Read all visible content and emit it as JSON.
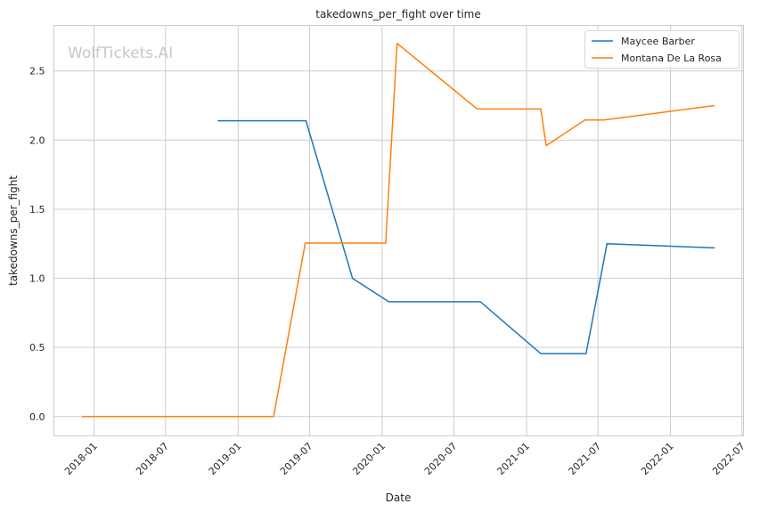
{
  "chart_data": {
    "type": "line",
    "title": "takedowns_per_fight over time",
    "xlabel": "Date",
    "ylabel": "takedowns_per_fight",
    "watermark": "WolfTickets.AI",
    "xlim": [
      "2017-09-21",
      "2022-07-05"
    ],
    "ylim": [
      -0.14,
      2.83
    ],
    "x_ticks": [
      "2018-01",
      "2018-07",
      "2019-01",
      "2019-07",
      "2020-01",
      "2020-07",
      "2021-01",
      "2021-07",
      "2022-01",
      "2022-07"
    ],
    "y_ticks": [
      0.0,
      0.5,
      1.0,
      1.5,
      2.0,
      2.5
    ],
    "y_tick_labels": [
      "0.0",
      "0.5",
      "1.0",
      "1.5",
      "2.0",
      "2.5"
    ],
    "grid": true,
    "legend_position": "top-right",
    "series": [
      {
        "name": "Maycee Barber",
        "color": "#1f77b4",
        "points": [
          {
            "x": "2018-11-10",
            "y": 2.14
          },
          {
            "x": "2019-06-22",
            "y": 2.14
          },
          {
            "x": "2019-10-18",
            "y": 1.0
          },
          {
            "x": "2020-01-18",
            "y": 0.83
          },
          {
            "x": "2020-09-06",
            "y": 0.83
          },
          {
            "x": "2021-02-06",
            "y": 0.455
          },
          {
            "x": "2021-06-01",
            "y": 0.455
          },
          {
            "x": "2021-07-24",
            "y": 1.25
          },
          {
            "x": "2022-04-23",
            "y": 1.22
          }
        ]
      },
      {
        "name": "Montana De La Rosa",
        "color": "#ff7f0e",
        "points": [
          {
            "x": "2017-12-01",
            "y": 0.0
          },
          {
            "x": "2019-04-01",
            "y": 0.0
          },
          {
            "x": "2019-06-20",
            "y": 1.255
          },
          {
            "x": "2020-01-10",
            "y": 1.255
          },
          {
            "x": "2020-02-08",
            "y": 2.7
          },
          {
            "x": "2020-08-29",
            "y": 2.225
          },
          {
            "x": "2021-02-06",
            "y": 2.225
          },
          {
            "x": "2021-02-20",
            "y": 1.96
          },
          {
            "x": "2021-05-29",
            "y": 2.145
          },
          {
            "x": "2021-07-16",
            "y": 2.145
          },
          {
            "x": "2022-04-23",
            "y": 2.25
          }
        ]
      }
    ]
  }
}
